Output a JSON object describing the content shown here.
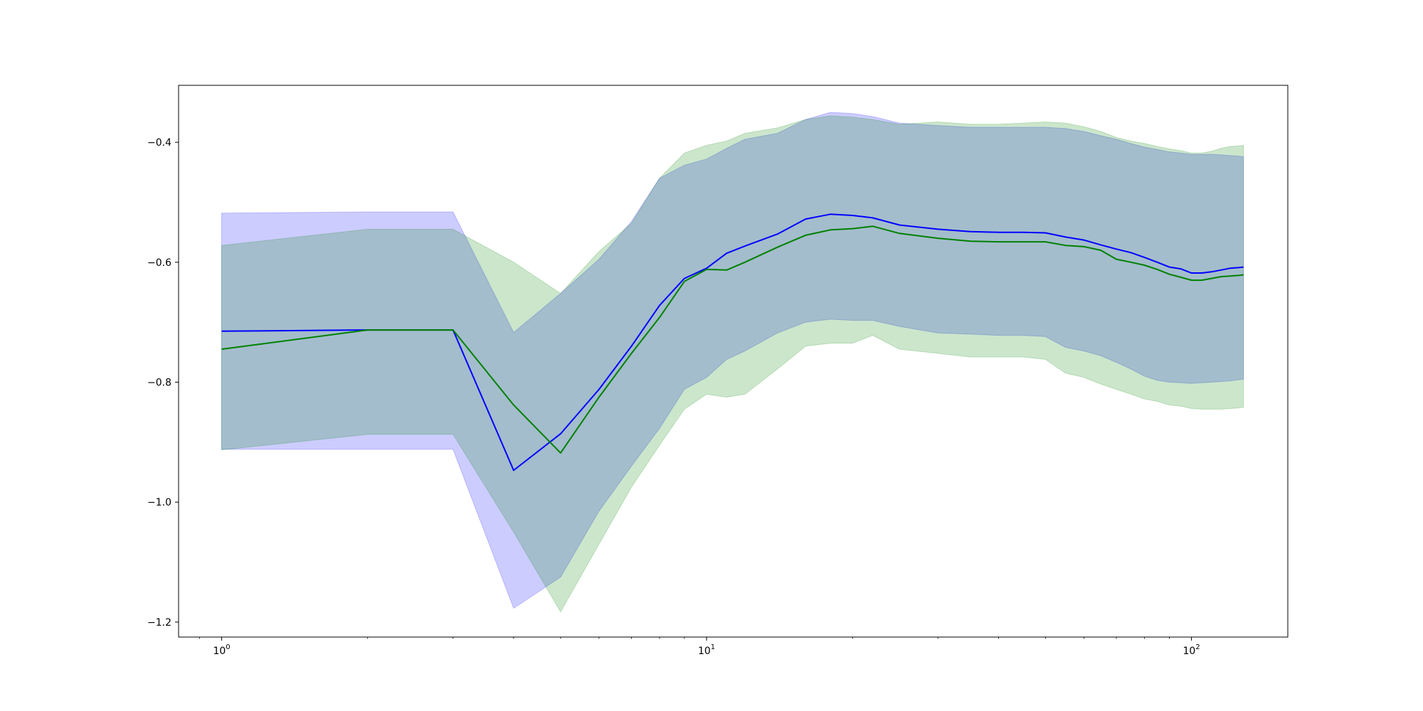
{
  "chart_data": {
    "type": "line",
    "title": "",
    "xlabel": "",
    "ylabel": "",
    "xscale": "log",
    "xlim": [
      0.815,
      158
    ],
    "ylim": [
      -1.225,
      -0.305
    ],
    "grid": false,
    "legend": "none",
    "x_ticks": [
      {
        "value": 1,
        "base": "10",
        "exp": "0"
      },
      {
        "value": 10,
        "base": "10",
        "exp": "1"
      },
      {
        "value": 100,
        "base": "10",
        "exp": "2"
      }
    ],
    "y_ticks": [
      {
        "value": -0.4,
        "label": "−0.4"
      },
      {
        "value": -0.6,
        "label": "−0.6"
      },
      {
        "value": -0.8,
        "label": "−0.8"
      },
      {
        "value": -1.0,
        "label": "−1.0"
      },
      {
        "value": -1.2,
        "label": "−1.2"
      }
    ],
    "series": [
      {
        "color": "#0000ff",
        "band_fill": "#0000ff",
        "band_opacity": 0.2,
        "x": [
          1,
          2,
          3,
          4,
          5,
          6,
          7,
          8,
          9,
          10,
          11,
          12,
          14,
          16,
          18,
          20,
          22,
          25,
          30,
          35,
          40,
          45,
          50,
          55,
          60,
          65,
          70,
          75,
          80,
          85,
          90,
          95,
          100,
          105,
          110,
          115,
          120,
          125,
          128
        ],
        "mean": [
          -0.715,
          -0.713,
          -0.713,
          -0.947,
          -0.886,
          -0.812,
          -0.74,
          -0.672,
          -0.627,
          -0.61,
          -0.585,
          -0.573,
          -0.553,
          -0.528,
          -0.52,
          -0.522,
          -0.526,
          -0.538,
          -0.545,
          -0.549,
          -0.55,
          -0.55,
          -0.551,
          -0.558,
          -0.563,
          -0.571,
          -0.578,
          -0.584,
          -0.592,
          -0.6,
          -0.608,
          -0.611,
          -0.618,
          -0.618,
          -0.616,
          -0.613,
          -0.61,
          -0.609,
          -0.608
        ],
        "upper": [
          -0.518,
          -0.516,
          -0.516,
          -0.717,
          -0.652,
          -0.595,
          -0.532,
          -0.46,
          -0.438,
          -0.428,
          -0.41,
          -0.395,
          -0.385,
          -0.362,
          -0.35,
          -0.352,
          -0.357,
          -0.368,
          -0.372,
          -0.375,
          -0.375,
          -0.375,
          -0.375,
          -0.377,
          -0.382,
          -0.389,
          -0.395,
          -0.402,
          -0.408,
          -0.412,
          -0.416,
          -0.418,
          -0.42,
          -0.42,
          -0.42,
          -0.421,
          -0.422,
          -0.423,
          -0.424
        ],
        "lower": [
          -0.912,
          -0.912,
          -0.912,
          -1.177,
          -1.125,
          -1.015,
          -0.94,
          -0.877,
          -0.812,
          -0.792,
          -0.762,
          -0.748,
          -0.718,
          -0.7,
          -0.695,
          -0.697,
          -0.697,
          -0.707,
          -0.718,
          -0.72,
          -0.722,
          -0.722,
          -0.724,
          -0.742,
          -0.748,
          -0.756,
          -0.767,
          -0.778,
          -0.79,
          -0.797,
          -0.8,
          -0.801,
          -0.802,
          -0.801,
          -0.8,
          -0.799,
          -0.798,
          -0.796,
          -0.795
        ]
      },
      {
        "color": "#008000",
        "band_fill": "#008000",
        "band_opacity": 0.2,
        "x": [
          1,
          2,
          3,
          4,
          5,
          6,
          7,
          8,
          9,
          10,
          11,
          12,
          14,
          16,
          18,
          20,
          22,
          25,
          30,
          35,
          40,
          45,
          50,
          55,
          60,
          65,
          70,
          75,
          80,
          85,
          90,
          95,
          100,
          105,
          110,
          115,
          120,
          125,
          128
        ],
        "mean": [
          -0.745,
          -0.713,
          -0.713,
          -0.838,
          -0.918,
          -0.825,
          -0.752,
          -0.692,
          -0.632,
          -0.612,
          -0.613,
          -0.6,
          -0.575,
          -0.555,
          -0.546,
          -0.544,
          -0.54,
          -0.552,
          -0.56,
          -0.565,
          -0.566,
          -0.566,
          -0.566,
          -0.572,
          -0.574,
          -0.58,
          -0.595,
          -0.6,
          -0.605,
          -0.612,
          -0.62,
          -0.625,
          -0.63,
          -0.63,
          -0.627,
          -0.624,
          -0.623,
          -0.622,
          -0.621
        ],
        "upper": [
          -0.572,
          -0.545,
          -0.545,
          -0.6,
          -0.652,
          -0.582,
          -0.535,
          -0.46,
          -0.418,
          -0.405,
          -0.398,
          -0.385,
          -0.376,
          -0.362,
          -0.356,
          -0.358,
          -0.362,
          -0.37,
          -0.366,
          -0.37,
          -0.37,
          -0.368,
          -0.366,
          -0.368,
          -0.374,
          -0.382,
          -0.392,
          -0.398,
          -0.402,
          -0.407,
          -0.411,
          -0.414,
          -0.418,
          -0.418,
          -0.415,
          -0.41,
          -0.407,
          -0.406,
          -0.405
        ],
        "lower": [
          -0.913,
          -0.887,
          -0.887,
          -1.05,
          -1.183,
          -1.07,
          -0.975,
          -0.905,
          -0.845,
          -0.82,
          -0.825,
          -0.82,
          -0.778,
          -0.74,
          -0.735,
          -0.735,
          -0.722,
          -0.745,
          -0.752,
          -0.758,
          -0.758,
          -0.758,
          -0.762,
          -0.785,
          -0.792,
          -0.803,
          -0.812,
          -0.82,
          -0.828,
          -0.832,
          -0.838,
          -0.84,
          -0.844,
          -0.845,
          -0.845,
          -0.845,
          -0.844,
          -0.843,
          -0.842
        ]
      }
    ]
  }
}
